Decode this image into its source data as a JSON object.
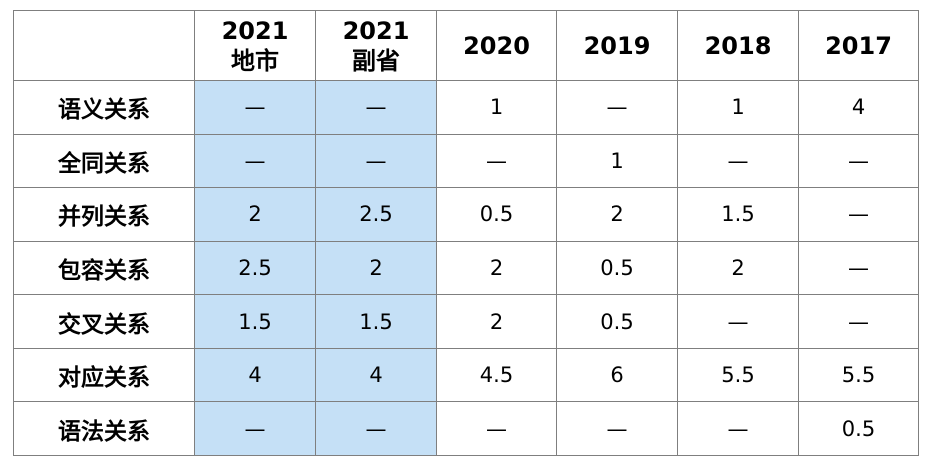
{
  "columns": [
    {
      "line1": "2021",
      "line2": "地市",
      "highlight": true
    },
    {
      "line1": "2021",
      "line2": "副省",
      "highlight": true
    },
    {
      "line1": "2020",
      "line2": "",
      "highlight": false
    },
    {
      "line1": "2019",
      "line2": "",
      "highlight": false
    },
    {
      "line1": "2018",
      "line2": "",
      "highlight": false
    },
    {
      "line1": "2017",
      "line2": "",
      "highlight": false
    }
  ],
  "rows": [
    {
      "label": "语义关系",
      "cells": [
        "—",
        "—",
        "1",
        "—",
        "1",
        "4"
      ]
    },
    {
      "label": "全同关系",
      "cells": [
        "—",
        "—",
        "—",
        "1",
        "—",
        "—"
      ]
    },
    {
      "label": "并列关系",
      "cells": [
        "2",
        "2.5",
        "0.5",
        "2",
        "1.5",
        "—"
      ]
    },
    {
      "label": "包容关系",
      "cells": [
        "2.5",
        "2",
        "2",
        "0.5",
        "2",
        "—"
      ]
    },
    {
      "label": "交叉关系",
      "cells": [
        "1.5",
        "1.5",
        "2",
        "0.5",
        "—",
        "—"
      ]
    },
    {
      "label": "对应关系",
      "cells": [
        "4",
        "4",
        "4.5",
        "6",
        "5.5",
        "5.5"
      ]
    },
    {
      "label": "语法关系",
      "cells": [
        "—",
        "—",
        "—",
        "—",
        "—",
        "0.5"
      ]
    }
  ],
  "colors": {
    "highlight": "#c5e0f6",
    "border": "#7f7f7f"
  }
}
